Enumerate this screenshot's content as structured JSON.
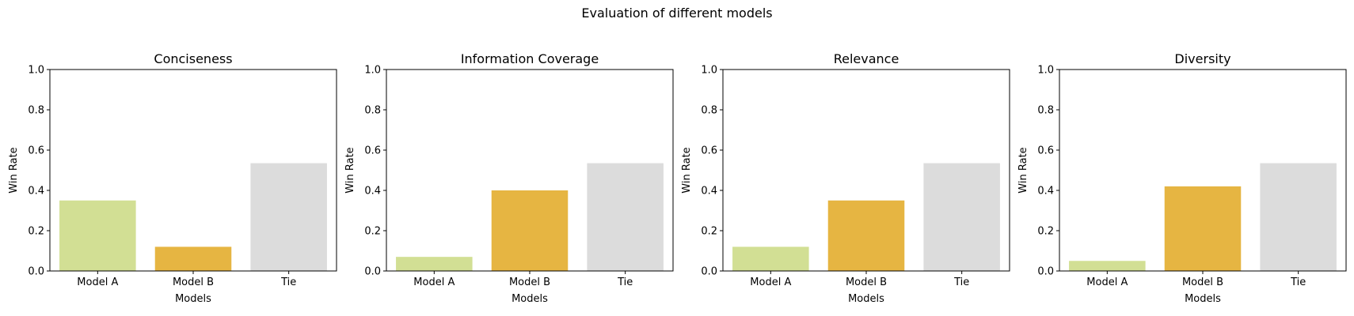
{
  "suptitle": "Evaluation of different models",
  "colors": {
    "Model A": "#d2df94",
    "Model B": "#e6b542",
    "Tie": "#dcdcdc"
  },
  "chart_data": [
    {
      "type": "bar",
      "title": "Conciseness",
      "xlabel": "Models",
      "ylabel": "Win Rate",
      "categories": [
        "Model A",
        "Model B",
        "Tie"
      ],
      "values": [
        0.35,
        0.12,
        0.535
      ],
      "ylim": [
        0,
        1.0
      ],
      "yticks": [
        "0.0",
        "0.2",
        "0.4",
        "0.6",
        "0.8",
        "1.0"
      ],
      "grid": false
    },
    {
      "type": "bar",
      "title": "Information Coverage",
      "xlabel": "Models",
      "ylabel": "Win Rate",
      "categories": [
        "Model A",
        "Model B",
        "Tie"
      ],
      "values": [
        0.07,
        0.4,
        0.535
      ],
      "ylim": [
        0,
        1.0
      ],
      "yticks": [
        "0.0",
        "0.2",
        "0.4",
        "0.6",
        "0.8",
        "1.0"
      ],
      "grid": false
    },
    {
      "type": "bar",
      "title": "Relevance",
      "xlabel": "Models",
      "ylabel": "Win Rate",
      "categories": [
        "Model A",
        "Model B",
        "Tie"
      ],
      "values": [
        0.12,
        0.35,
        0.535
      ],
      "ylim": [
        0,
        1.0
      ],
      "yticks": [
        "0.0",
        "0.2",
        "0.4",
        "0.6",
        "0.8",
        "1.0"
      ],
      "grid": false
    },
    {
      "type": "bar",
      "title": "Diversity",
      "xlabel": "Models",
      "ylabel": "Win Rate",
      "categories": [
        "Model A",
        "Model B",
        "Tie"
      ],
      "values": [
        0.05,
        0.42,
        0.535
      ],
      "ylim": [
        0,
        1.0
      ],
      "yticks": [
        "0.0",
        "0.2",
        "0.4",
        "0.6",
        "0.8",
        "1.0"
      ],
      "grid": false
    }
  ]
}
